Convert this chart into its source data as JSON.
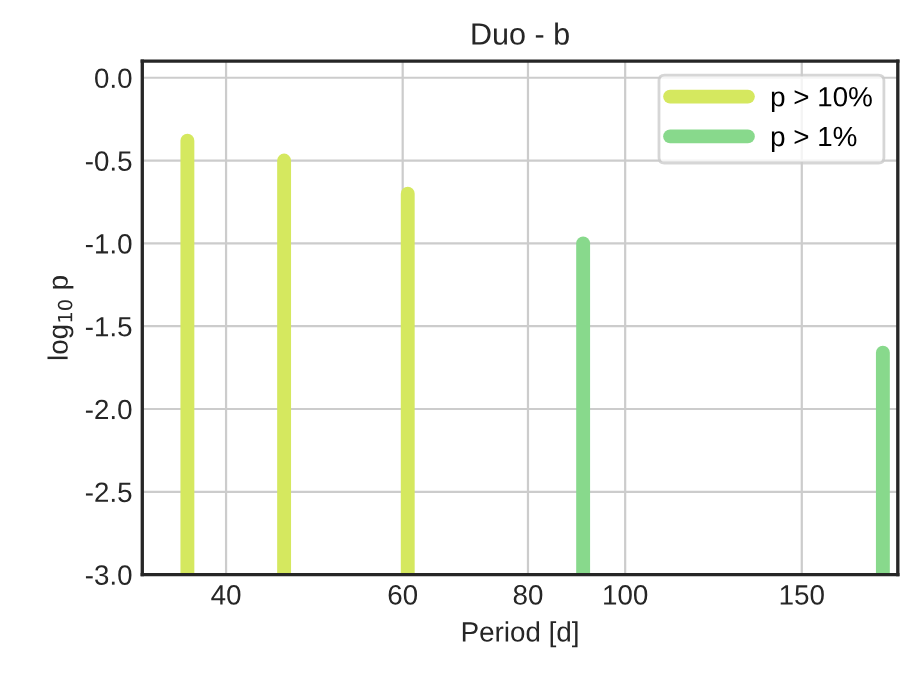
{
  "chart_data": {
    "type": "bar",
    "title": "Duo - b",
    "xlabel": "Period [d]",
    "ylabel": "log$_{10}$ p",
    "series": [
      {
        "name": "p > 10%",
        "color": "#d5e85f",
        "x": [
          36.6,
          45.7,
          60.7
        ],
        "base": [
          -3,
          -3,
          -3
        ],
        "values": [
          2.62,
          2.5,
          2.3
        ]
      },
      {
        "name": "p > 1%",
        "color": "#88d98c",
        "x": [
          90.8,
          180.7
        ],
        "base": [
          -3,
          -3
        ],
        "values": [
          2.0,
          1.34
        ]
      }
    ],
    "log": "x",
    "xlim": [
      33,
      187
    ],
    "xticks": [
      40,
      60,
      80,
      100,
      150
    ],
    "ylim": [
      -3,
      0.1
    ],
    "yticks": [
      {
        "value": 0,
        "label": "0.0"
      },
      -0.5,
      {
        "value": -1,
        "label": "-1.0"
      },
      -1.5,
      {
        "value": -2,
        "label": "-2.0"
      },
      -2.5,
      {
        "value": -3,
        "label": "-3.0"
      }
    ],
    "grid": true,
    "legend": "top right"
  }
}
